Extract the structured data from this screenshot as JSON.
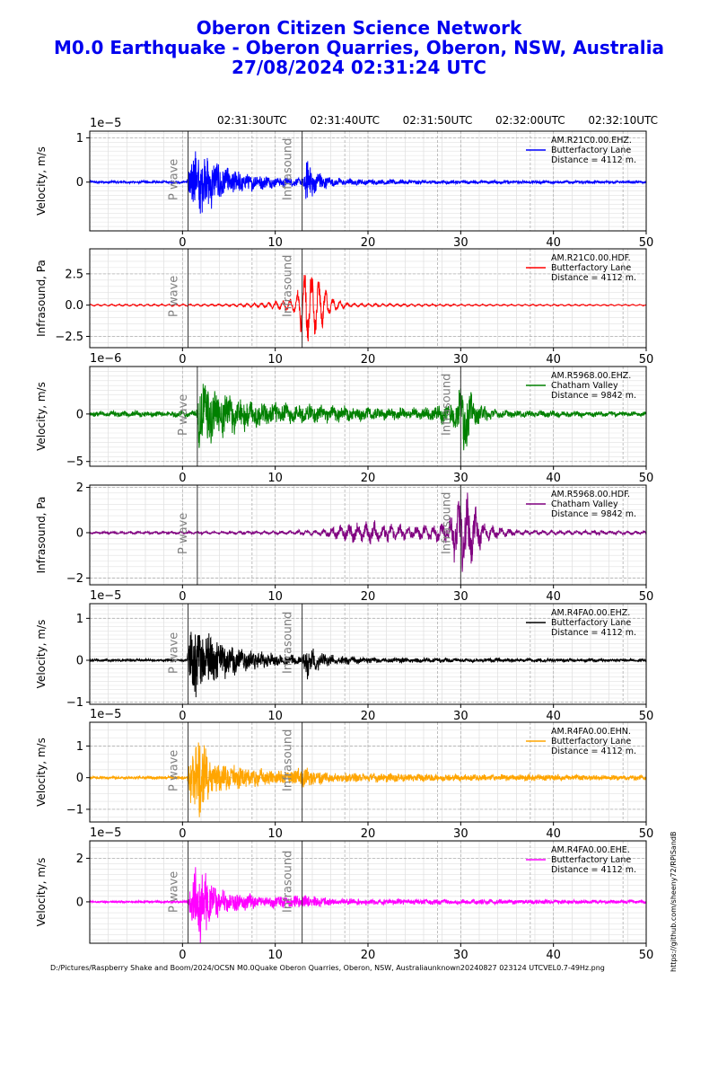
{
  "title_lines": [
    "Oberon Citizen Science Network",
    "M0.0 Earthquake - Oberon Quarries, Oberon, NSW, Australia",
    "27/08/2024 02:31:24 UTC"
  ],
  "colors": {
    "title": "#0000ee",
    "marker_text": "#808080",
    "marker_line": "#333333"
  },
  "footer": "D:/Pictures/Raspberry Shake and Boom/2024/OCSN M0.0Quake Oberon Quarries, Oberon, NSW, Australiaunknown20240827 023124 UTCVEL0.7-49Hz.png",
  "side_url": "https://github.com/sheeny72/RPiSandB",
  "chart_data": {
    "type": "line",
    "x_range": [
      -10,
      50
    ],
    "x_ticks": [
      0,
      10,
      20,
      30,
      40,
      50
    ],
    "utc_ticks": [
      {
        "x": 7.5,
        "label": "02:31:30UTC"
      },
      {
        "x": 17.5,
        "label": "02:31:40UTC"
      },
      {
        "x": 27.5,
        "label": "02:31:50UTC"
      },
      {
        "x": 37.5,
        "label": "02:32:00UTC"
      },
      {
        "x": 47.5,
        "label": "02:32:10UTC"
      }
    ],
    "grid": true,
    "legend_position": "top-right",
    "panels": [
      {
        "ylabel": "Velocity, m/s",
        "color": "#0000ff",
        "offset_label": "1e−5",
        "ylim": [
          -1.1,
          1.15
        ],
        "y_ticks": [
          {
            "v": 0,
            "label": "0"
          },
          {
            "v": 1,
            "label": "1"
          }
        ],
        "legend": [
          "AM.R21C0.00.EHZ.",
          "Butterfactory Lane",
          "Distance = 4112 m."
        ],
        "p_wave": 0.6,
        "infrasound": 12.9,
        "envelope": [
          {
            "t": -10,
            "a": 0.03
          },
          {
            "t": 0.5,
            "a": 0.03
          },
          {
            "t": 0.8,
            "a": 0.75
          },
          {
            "t": 2.0,
            "a": 0.7
          },
          {
            "t": 4,
            "a": 0.4
          },
          {
            "t": 7,
            "a": 0.2
          },
          {
            "t": 10,
            "a": 0.12
          },
          {
            "t": 12.8,
            "a": 0.08
          },
          {
            "t": 13.5,
            "a": 0.55
          },
          {
            "t": 14.5,
            "a": 0.25
          },
          {
            "t": 16,
            "a": 0.1
          },
          {
            "t": 20,
            "a": 0.06
          },
          {
            "t": 30,
            "a": 0.04
          },
          {
            "t": 50,
            "a": 0.03
          }
        ],
        "base_freq": 0.9,
        "noise_freq": 6.0,
        "noise_mix": 0.75
      },
      {
        "ylabel": "Infrasound, Pa",
        "color": "#ff0000",
        "offset_label": "",
        "ylim": [
          -3.4,
          4.5
        ],
        "y_ticks": [
          {
            "v": -2.5,
            "label": "−2.5"
          },
          {
            "v": 0,
            "label": "0.0"
          },
          {
            "v": 2.5,
            "label": "2.5"
          }
        ],
        "legend": [
          "AM.R21C0.00.HDF.",
          "Butterfactory Lane",
          "Distance = 4112 m."
        ],
        "p_wave": 0.6,
        "infrasound": 12.9,
        "envelope": [
          {
            "t": -10,
            "a": 0.08
          },
          {
            "t": 5,
            "a": 0.1
          },
          {
            "t": 9,
            "a": 0.2
          },
          {
            "t": 12,
            "a": 0.6
          },
          {
            "t": 13.3,
            "a": 3.2
          },
          {
            "t": 14.5,
            "a": 2.6
          },
          {
            "t": 16,
            "a": 0.6
          },
          {
            "t": 18,
            "a": 0.15
          },
          {
            "t": 30,
            "a": 0.08
          },
          {
            "t": 50,
            "a": 0.06
          }
        ],
        "base_freq": 1.3,
        "noise_freq": 3.5,
        "noise_mix": 0.3
      },
      {
        "ylabel": "Velocity, m/s",
        "color": "#008000",
        "offset_label": "1e−6",
        "ylim": [
          -5.5,
          5.0
        ],
        "y_ticks": [
          {
            "v": -5,
            "label": "−5"
          },
          {
            "v": 0,
            "label": "0"
          }
        ],
        "legend": [
          "AM.R5968.00.EHZ.",
          "Chatham Valley",
          "Distance = 9842 m."
        ],
        "p_wave": 1.6,
        "infrasound": 30.0,
        "envelope": [
          {
            "t": -10,
            "a": 0.3
          },
          {
            "t": 1.5,
            "a": 0.35
          },
          {
            "t": 1.8,
            "a": 3.8
          },
          {
            "t": 4,
            "a": 2.5
          },
          {
            "t": 8,
            "a": 1.4
          },
          {
            "t": 14,
            "a": 1.0
          },
          {
            "t": 20,
            "a": 0.7
          },
          {
            "t": 26,
            "a": 0.6
          },
          {
            "t": 29.5,
            "a": 1.5
          },
          {
            "t": 30.3,
            "a": 4.2
          },
          {
            "t": 31.5,
            "a": 1.2
          },
          {
            "t": 34,
            "a": 0.4
          },
          {
            "t": 50,
            "a": 0.25
          }
        ],
        "base_freq": 0.8,
        "noise_freq": 5.5,
        "noise_mix": 0.7
      },
      {
        "ylabel": "Infrasound, Pa",
        "color": "#800080",
        "offset_label": "",
        "ylim": [
          -2.3,
          2.1
        ],
        "y_ticks": [
          {
            "v": -2,
            "label": "−2"
          },
          {
            "v": 0,
            "label": "0"
          },
          {
            "v": 2,
            "label": "2"
          }
        ],
        "legend": [
          "AM.R5968.00.HDF.",
          "Chatham Valley",
          "Distance = 9842 m."
        ],
        "p_wave": 1.6,
        "infrasound": 30.0,
        "envelope": [
          {
            "t": -10,
            "a": 0.05
          },
          {
            "t": 10,
            "a": 0.07
          },
          {
            "t": 15,
            "a": 0.15
          },
          {
            "t": 18,
            "a": 0.45
          },
          {
            "t": 21,
            "a": 0.5
          },
          {
            "t": 25,
            "a": 0.3
          },
          {
            "t": 28.5,
            "a": 0.5
          },
          {
            "t": 30.0,
            "a": 1.8
          },
          {
            "t": 31.0,
            "a": 1.6
          },
          {
            "t": 32.5,
            "a": 0.4
          },
          {
            "t": 36,
            "a": 0.12
          },
          {
            "t": 50,
            "a": 0.08
          }
        ],
        "base_freq": 1.1,
        "noise_freq": 3.2,
        "noise_mix": 0.5
      },
      {
        "ylabel": "Velocity, m/s",
        "color": "#000000",
        "offset_label": "1e−5",
        "ylim": [
          -1.05,
          1.35
        ],
        "y_ticks": [
          {
            "v": -1,
            "label": "−1"
          },
          {
            "v": 0,
            "label": "0"
          },
          {
            "v": 1,
            "label": "1"
          }
        ],
        "legend": [
          "AM.R4FA0.00.EHZ.",
          "Butterfactory Lane",
          "Distance = 4112 m."
        ],
        "p_wave": 0.6,
        "infrasound": 12.9,
        "envelope": [
          {
            "t": -10,
            "a": 0.03
          },
          {
            "t": 0.5,
            "a": 0.03
          },
          {
            "t": 0.8,
            "a": 0.95
          },
          {
            "t": 2.0,
            "a": 0.8
          },
          {
            "t": 4,
            "a": 0.45
          },
          {
            "t": 7,
            "a": 0.25
          },
          {
            "t": 10,
            "a": 0.14
          },
          {
            "t": 12.8,
            "a": 0.1
          },
          {
            "t": 13.6,
            "a": 0.45
          },
          {
            "t": 15,
            "a": 0.15
          },
          {
            "t": 20,
            "a": 0.06
          },
          {
            "t": 50,
            "a": 0.03
          }
        ],
        "base_freq": 0.9,
        "noise_freq": 6.0,
        "noise_mix": 0.75
      },
      {
        "ylabel": "Velocity, m/s",
        "color": "#ffa500",
        "offset_label": "1e−5",
        "ylim": [
          -1.4,
          1.75
        ],
        "y_ticks": [
          {
            "v": -1,
            "label": "−1"
          },
          {
            "v": 0,
            "label": "0"
          },
          {
            "v": 1,
            "label": "1"
          }
        ],
        "legend": [
          "AM.R4FA0.00.EHN.",
          "Butterfactory Lane",
          "Distance = 4112 m."
        ],
        "p_wave": 0.6,
        "infrasound": 12.9,
        "envelope": [
          {
            "t": -10,
            "a": 0.04
          },
          {
            "t": 0.5,
            "a": 0.05
          },
          {
            "t": 0.9,
            "a": 1.0
          },
          {
            "t": 1.8,
            "a": 1.3
          },
          {
            "t": 3,
            "a": 0.6
          },
          {
            "t": 6,
            "a": 0.35
          },
          {
            "t": 10,
            "a": 0.22
          },
          {
            "t": 13.5,
            "a": 0.3
          },
          {
            "t": 16,
            "a": 0.15
          },
          {
            "t": 25,
            "a": 0.12
          },
          {
            "t": 35,
            "a": 0.1
          },
          {
            "t": 50,
            "a": 0.07
          }
        ],
        "base_freq": 1.0,
        "noise_freq": 6.5,
        "noise_mix": 0.8
      },
      {
        "ylabel": "Velocity, m/s",
        "color": "#ff00ff",
        "offset_label": "1e−5",
        "ylim": [
          -1.9,
          2.8
        ],
        "y_ticks": [
          {
            "v": 0,
            "label": "0"
          },
          {
            "v": 2,
            "label": "2"
          }
        ],
        "legend": [
          "AM.R4FA0.00.EHE.",
          "Butterfactory Lane",
          "Distance = 4112 m."
        ],
        "p_wave": 0.6,
        "infrasound": 12.9,
        "envelope": [
          {
            "t": -10,
            "a": 0.04
          },
          {
            "t": 0.5,
            "a": 0.05
          },
          {
            "t": 0.9,
            "a": 0.9
          },
          {
            "t": 1.9,
            "a": 2.1
          },
          {
            "t": 3,
            "a": 0.8
          },
          {
            "t": 5,
            "a": 0.45
          },
          {
            "t": 9,
            "a": 0.25
          },
          {
            "t": 13.5,
            "a": 0.3
          },
          {
            "t": 16,
            "a": 0.15
          },
          {
            "t": 25,
            "a": 0.12
          },
          {
            "t": 50,
            "a": 0.08
          }
        ],
        "base_freq": 1.0,
        "noise_freq": 6.5,
        "noise_mix": 0.8
      }
    ],
    "marker_labels": {
      "p_wave": "P wave",
      "infrasound": "Infrasound"
    }
  }
}
